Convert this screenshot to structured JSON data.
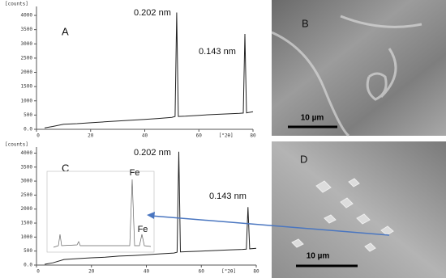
{
  "chart_data": [
    {
      "type": "line",
      "panel": "A",
      "ylabel": "[counts]",
      "xlabel": "[°2θ]",
      "x": [
        3,
        6,
        10,
        15,
        20,
        25,
        30,
        35,
        40,
        45,
        50,
        51.2,
        51.8,
        52.4,
        55,
        60,
        65,
        70,
        75,
        76.4,
        77,
        77.6,
        80
      ],
      "values": [
        50,
        100,
        180,
        200,
        230,
        260,
        290,
        320,
        350,
        380,
        420,
        450,
        4100,
        450,
        460,
        490,
        520,
        540,
        560,
        570,
        3350,
        580,
        620
      ],
      "color": "#222222",
      "xlim": [
        0,
        80
      ],
      "ylim": [
        0,
        4200
      ],
      "xticks": [
        0,
        20,
        40,
        60,
        80
      ],
      "yticks": [
        {
          "value": 0,
          "label": "0.0"
        },
        500,
        1000,
        1500,
        2000,
        2500,
        3000,
        3500,
        4000
      ],
      "annotations": [
        "0.202 nm",
        "0.143 nm"
      ]
    },
    {
      "type": "line",
      "panel": "C",
      "ylabel": "[counts]",
      "xlabel": "[°2θ]",
      "x": [
        3,
        6,
        10,
        15,
        20,
        25,
        30,
        35,
        40,
        45,
        50,
        51.2,
        51.8,
        52.4,
        55,
        60,
        65,
        70,
        75,
        76.4,
        77,
        77.6,
        80
      ],
      "values": [
        30,
        80,
        200,
        230,
        260,
        280,
        320,
        340,
        370,
        400,
        430,
        460,
        4050,
        470,
        480,
        500,
        520,
        540,
        560,
        570,
        2070,
        580,
        600
      ],
      "color": "#222222",
      "xlim": [
        0,
        80
      ],
      "ylim": [
        0,
        4100
      ],
      "xticks": [
        0,
        20,
        40,
        60,
        80
      ],
      "yticks": [
        {
          "value": 0,
          "label": "0.0"
        },
        500,
        1000,
        1500,
        2000,
        2500,
        3000,
        3500,
        4000
      ],
      "annotations": [
        "0.202 nm",
        "0.143 nm"
      ],
      "inset_labels": [
        "Fe",
        "Fe"
      ]
    }
  ],
  "images": [
    {
      "label": "B",
      "scale": "10 µm"
    },
    {
      "label": "D",
      "scale": "10 µm"
    }
  ]
}
